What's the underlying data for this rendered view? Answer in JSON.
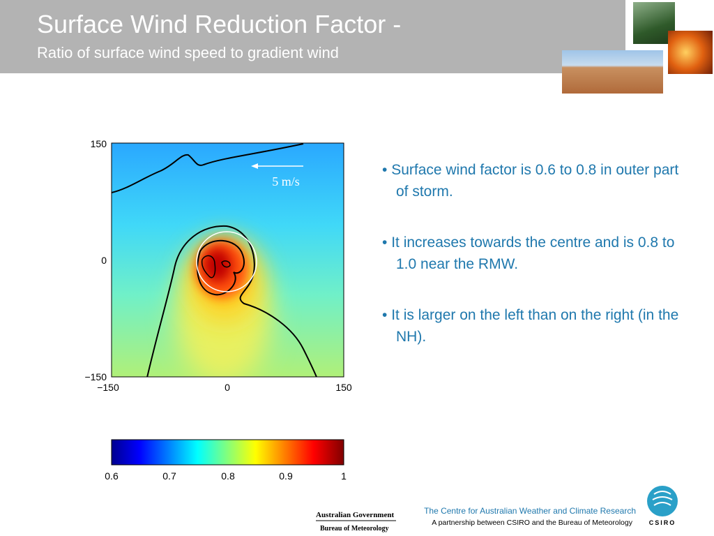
{
  "header": {
    "title": "Surface Wind Reduction Factor -",
    "subtitle": "Ratio of surface wind speed to gradient wind"
  },
  "figure": {
    "yticks": [
      "150",
      "0",
      "−150"
    ],
    "xticks": [
      "−150",
      "0",
      "150"
    ],
    "annotation": "5 m/s",
    "colorbar_ticks": [
      "0.6",
      "0.7",
      "0.8",
      "0.9",
      "1"
    ]
  },
  "bullets": [
    "Surface wind factor is 0.6 to 0.8 in outer part of storm.",
    "It increases towards the centre and is 0.8 to 1.0 near the RMW.",
    "It is larger on the left than on the right (in the NH)."
  ],
  "footer": {
    "line1": "The Centre for Australian Weather and Climate Research",
    "line2": "A partnership between CSIRO and the Bureau of Meteorology",
    "gov1": "Australian Government",
    "gov2": "Bureau of Meteorology",
    "csiro": "CSIRO"
  }
}
